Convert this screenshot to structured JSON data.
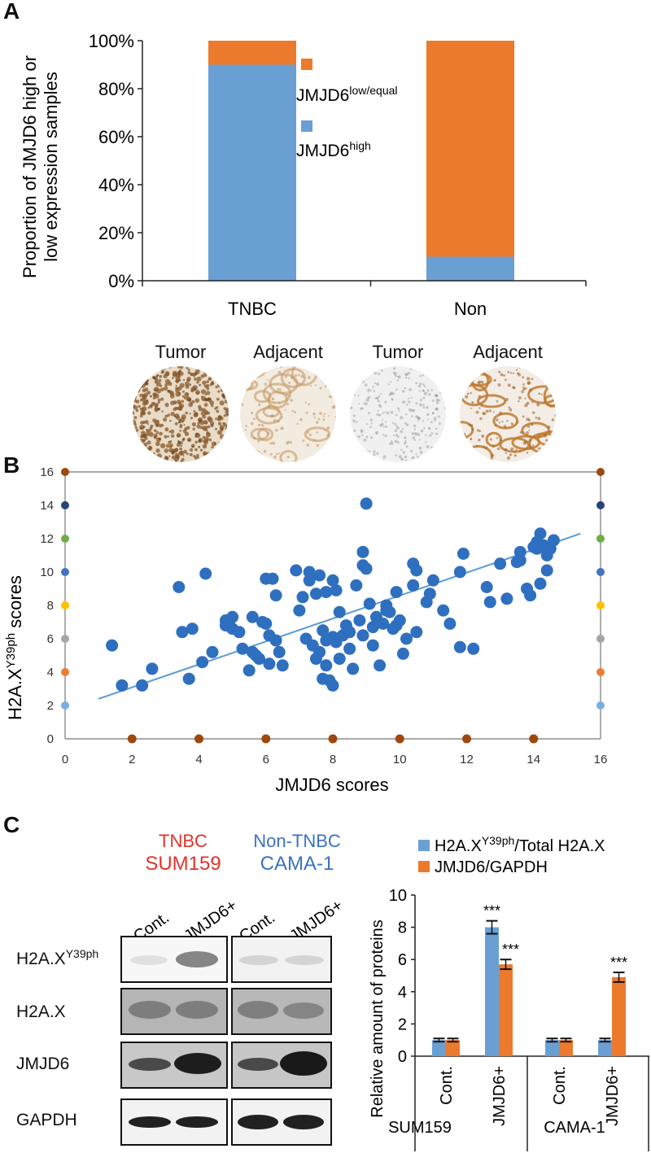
{
  "panel_labels": {
    "a": "A",
    "b": "B",
    "c": "C"
  },
  "colors": {
    "blue": "#6a9fd4",
    "orange": "#ec7a2c",
    "scatter": "#2f6fbf",
    "tnbc": "#e2322a",
    "non_tnbc": "#3a72c4"
  },
  "panel_b_images": {
    "labels": [
      "Tumor",
      "Adjacent",
      "Tumor",
      "Adjacent"
    ],
    "kinds": [
      "dense",
      "light-ring",
      "pale",
      "ring"
    ]
  },
  "panel_c_blot": {
    "group1_name": "TNBC",
    "group1_line": "SUM159",
    "group2_name": "Non-TNBC",
    "group2_line": "CAMA-1",
    "lanes": [
      "Cont.",
      "JMJD6+",
      "Cont.",
      "JMJD6+"
    ],
    "rows": [
      {
        "base": "H2A.X",
        "sup": "Y39ph"
      },
      {
        "base": "H2A.X",
        "sup": ""
      },
      {
        "base": "JMJD6",
        "sup": ""
      },
      {
        "base": "GAPDH",
        "sup": ""
      }
    ]
  },
  "chart_data": [
    {
      "type": "bar",
      "stacked": true,
      "title": "",
      "categories": [
        "TNBC",
        "Non"
      ],
      "series": [
        {
          "name": "JMJD6",
          "name_sup": "high",
          "color": "#6a9fd4",
          "values": [
            90,
            10
          ]
        },
        {
          "name": "JMJD6",
          "name_sup": "low/equal",
          "color": "#ec7a2c",
          "values": [
            10,
            90
          ]
        }
      ],
      "ylabel_line1": "Proportion of JMJD6 high or",
      "ylabel_line2": "low expression samples",
      "ylim": [
        0,
        100
      ],
      "yticks": [
        "0%",
        "20%",
        "40%",
        "60%",
        "80%",
        "100%"
      ],
      "legend": "right"
    },
    {
      "type": "scatter",
      "xlabel": "JMJD6 scores",
      "ylabel_base": "H2A.X",
      "ylabel_sup": "Y39ph",
      "ylabel_suffix": " scores",
      "xlim": [
        0,
        16
      ],
      "ylim": [
        0,
        16
      ],
      "xticks": [
        "0",
        "2",
        "4",
        "6",
        "8",
        "10",
        "12",
        "14",
        "16"
      ],
      "yticks": [
        "0",
        "2",
        "4",
        "6",
        "8",
        "10",
        "12",
        "14",
        "16"
      ],
      "trendline": {
        "x": [
          1,
          15.4
        ],
        "y": [
          2.4,
          12.3
        ]
      },
      "y_marker_colors": [
        "#7aaee0",
        "#ed7d31",
        "#a5a5a5",
        "#ffc000",
        "#4472c4",
        "#70ad47",
        "#264478",
        "#9e480e"
      ],
      "points": [
        [
          1.4,
          5.6
        ],
        [
          1.7,
          3.2
        ],
        [
          2.3,
          3.2
        ],
        [
          2.6,
          4.2
        ],
        [
          3.4,
          9.1
        ],
        [
          3.5,
          6.4
        ],
        [
          3.7,
          3.6
        ],
        [
          3.8,
          6.6
        ],
        [
          4.1,
          4.6
        ],
        [
          4.2,
          9.9
        ],
        [
          4.4,
          5.2
        ],
        [
          4.8,
          7.1
        ],
        [
          4.8,
          6.8
        ],
        [
          4.9,
          6.9
        ],
        [
          5.0,
          6.6
        ],
        [
          5.0,
          7.3
        ],
        [
          5.2,
          6.4
        ],
        [
          5.3,
          5.4
        ],
        [
          5.5,
          4.1
        ],
        [
          5.6,
          5.2
        ],
        [
          5.6,
          7.3
        ],
        [
          5.7,
          5.0
        ],
        [
          5.8,
          4.8
        ],
        [
          5.9,
          7.0
        ],
        [
          6.0,
          6.9
        ],
        [
          6.0,
          9.6
        ],
        [
          6.1,
          6.2
        ],
        [
          6.1,
          4.5
        ],
        [
          6.2,
          9.6
        ],
        [
          6.3,
          5.9
        ],
        [
          6.3,
          8.6
        ],
        [
          6.4,
          5.2
        ],
        [
          6.5,
          4.4
        ],
        [
          6.9,
          10.1
        ],
        [
          7.0,
          7.7
        ],
        [
          7.1,
          8.5
        ],
        [
          7.2,
          6.0
        ],
        [
          7.3,
          9.5
        ],
        [
          7.3,
          10.0
        ],
        [
          7.4,
          5.6
        ],
        [
          7.5,
          8.7
        ],
        [
          7.5,
          4.8
        ],
        [
          7.6,
          9.8
        ],
        [
          7.6,
          5.2
        ],
        [
          7.7,
          3.6
        ],
        [
          7.7,
          6.5
        ],
        [
          7.8,
          8.8
        ],
        [
          7.8,
          5.9
        ],
        [
          7.8,
          4.4
        ],
        [
          7.9,
          3.5
        ],
        [
          8.0,
          9.5
        ],
        [
          8.0,
          6.1
        ],
        [
          8.0,
          3.2
        ],
        [
          8.1,
          8.9
        ],
        [
          8.1,
          5.8
        ],
        [
          8.2,
          4.8
        ],
        [
          8.2,
          7.6
        ],
        [
          8.3,
          6.2
        ],
        [
          8.4,
          6.8
        ],
        [
          8.5,
          5.4
        ],
        [
          8.5,
          6.4
        ],
        [
          8.6,
          4.2
        ],
        [
          8.7,
          9.2
        ],
        [
          8.8,
          7.1
        ],
        [
          8.9,
          10.4
        ],
        [
          8.9,
          6.2
        ],
        [
          9.0,
          10.2
        ],
        [
          9.1,
          8.1
        ],
        [
          9.2,
          5.6
        ],
        [
          9.2,
          6.7
        ],
        [
          9.3,
          7.3
        ],
        [
          9.4,
          4.4
        ],
        [
          9.5,
          6.9
        ],
        [
          9.6,
          8.0
        ],
        [
          9.6,
          7.7
        ],
        [
          9.7,
          7.6
        ],
        [
          9.8,
          6.6
        ],
        [
          9.9,
          6.8
        ],
        [
          9.9,
          8.8
        ],
        [
          10.0,
          7.1
        ],
        [
          10.1,
          5.1
        ],
        [
          10.2,
          6.0
        ],
        [
          10.4,
          9.2
        ],
        [
          10.5,
          10.1
        ],
        [
          10.5,
          6.4
        ],
        [
          10.8,
          8.2
        ],
        [
          10.9,
          8.7
        ],
        [
          11.0,
          9.5
        ],
        [
          11.3,
          7.7
        ],
        [
          11.5,
          6.9
        ],
        [
          11.8,
          10.0
        ],
        [
          11.8,
          5.5
        ],
        [
          12.2,
          5.4
        ],
        [
          12.6,
          9.1
        ],
        [
          12.7,
          8.2
        ],
        [
          13.0,
          10.5
        ],
        [
          13.2,
          8.4
        ],
        [
          13.5,
          10.6
        ],
        [
          13.6,
          10.7
        ],
        [
          13.6,
          11.2
        ],
        [
          13.8,
          9.0
        ],
        [
          13.9,
          8.6
        ],
        [
          14.0,
          11.5
        ],
        [
          14.1,
          11.4
        ],
        [
          14.1,
          11.8
        ],
        [
          14.2,
          12.3
        ],
        [
          14.2,
          9.3
        ],
        [
          14.3,
          11.6
        ],
        [
          14.4,
          10.1
        ],
        [
          14.4,
          11.0
        ],
        [
          14.5,
          11.4
        ],
        [
          14.6,
          11.9
        ],
        [
          8.9,
          11.2
        ],
        [
          9.0,
          14.1
        ],
        [
          10.4,
          10.5
        ],
        [
          11.9,
          11.1
        ]
      ]
    },
    {
      "type": "bar",
      "title": "",
      "categories": [
        "Cont.",
        "JMJD6+",
        "Cont.",
        "JMJD6+"
      ],
      "groups": [
        "SUM159",
        "CAMA-1"
      ],
      "series": [
        {
          "name_base": "H2A.X",
          "name_sup": "Y39ph",
          "name_suffix": "/Total H2A.X",
          "color": "#6a9fd4",
          "values": [
            1.0,
            8.0,
            1.0,
            1.0
          ],
          "errors": [
            0.1,
            0.4,
            0.1,
            0.1
          ],
          "significance": [
            "",
            "***",
            "",
            ""
          ]
        },
        {
          "name_base": "JMJD6/GAPDH",
          "name_sup": "",
          "name_suffix": "",
          "color": "#ec7a2c",
          "values": [
            1.0,
            5.7,
            1.0,
            4.9
          ],
          "errors": [
            0.1,
            0.3,
            0.1,
            0.3
          ],
          "significance": [
            "",
            "***",
            "",
            "***"
          ]
        }
      ],
      "ylabel": "Relative amount of proteins",
      "ylim": [
        0,
        10
      ],
      "yticks": [
        "0",
        "2",
        "4",
        "6",
        "8",
        "10"
      ],
      "legend": "top"
    }
  ]
}
